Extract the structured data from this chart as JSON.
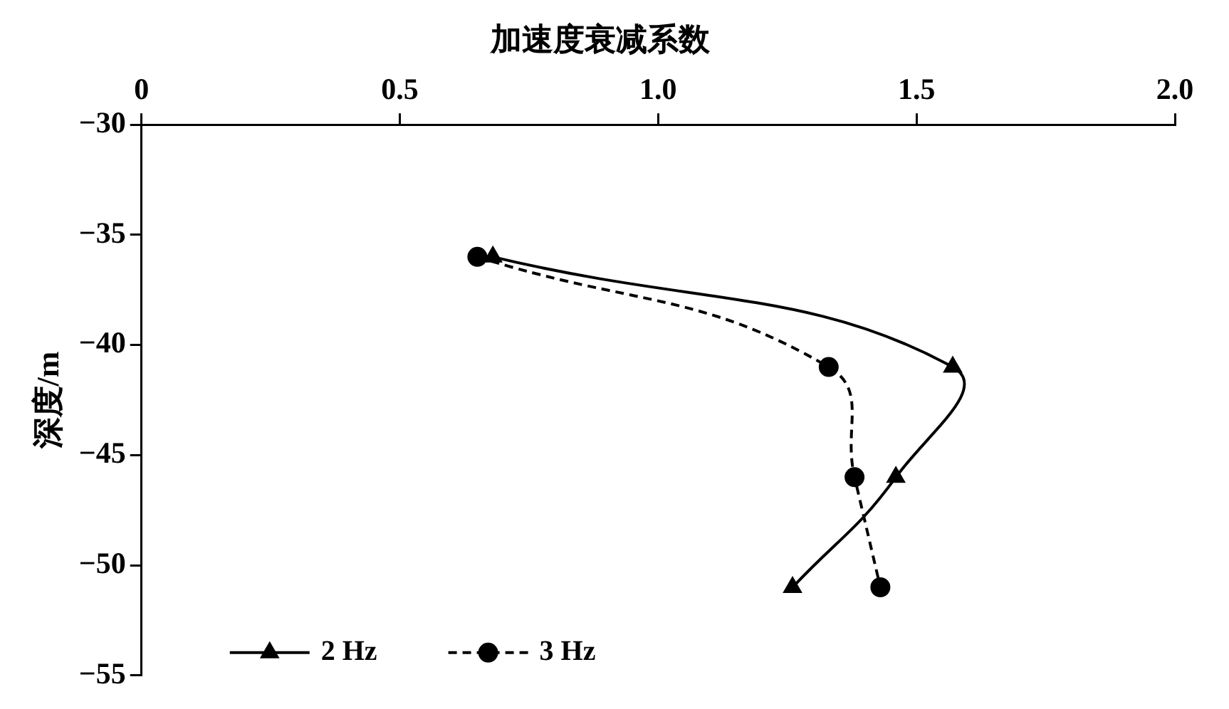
{
  "chart_data": {
    "type": "line",
    "xlabel": "加速度衰减系数",
    "ylabel": "深度/m",
    "xlim": [
      0,
      2
    ],
    "xticks": [
      0,
      0.5,
      {
        "value": 1,
        "label": "1.0"
      },
      1.5,
      {
        "value": 2,
        "label": "2.0"
      }
    ],
    "ylim": [
      -55,
      -30
    ],
    "yticks": [
      {
        "value": -30,
        "label": "−30"
      },
      {
        "value": -35,
        "label": "−35"
      },
      {
        "value": -40,
        "label": "−40"
      },
      {
        "value": -45,
        "label": "−45"
      },
      {
        "value": -50,
        "label": "−50"
      },
      {
        "value": -55,
        "label": "−55"
      }
    ],
    "grid": false,
    "legend": "bottom left",
    "series": [
      {
        "name": "2 Hz",
        "color": "#000000",
        "marker": "triangle",
        "line_style": "solid",
        "x": [
          0.68,
          1.57,
          1.46,
          1.26
        ],
        "values": [
          -36,
          -41,
          -46,
          -51
        ]
      },
      {
        "name": "3 Hz",
        "color": "#000000",
        "marker": "circle",
        "line_style": "dashed",
        "x": [
          0.65,
          1.33,
          1.38,
          1.43
        ],
        "values": [
          -36,
          -41,
          -46,
          -51
        ]
      }
    ]
  }
}
